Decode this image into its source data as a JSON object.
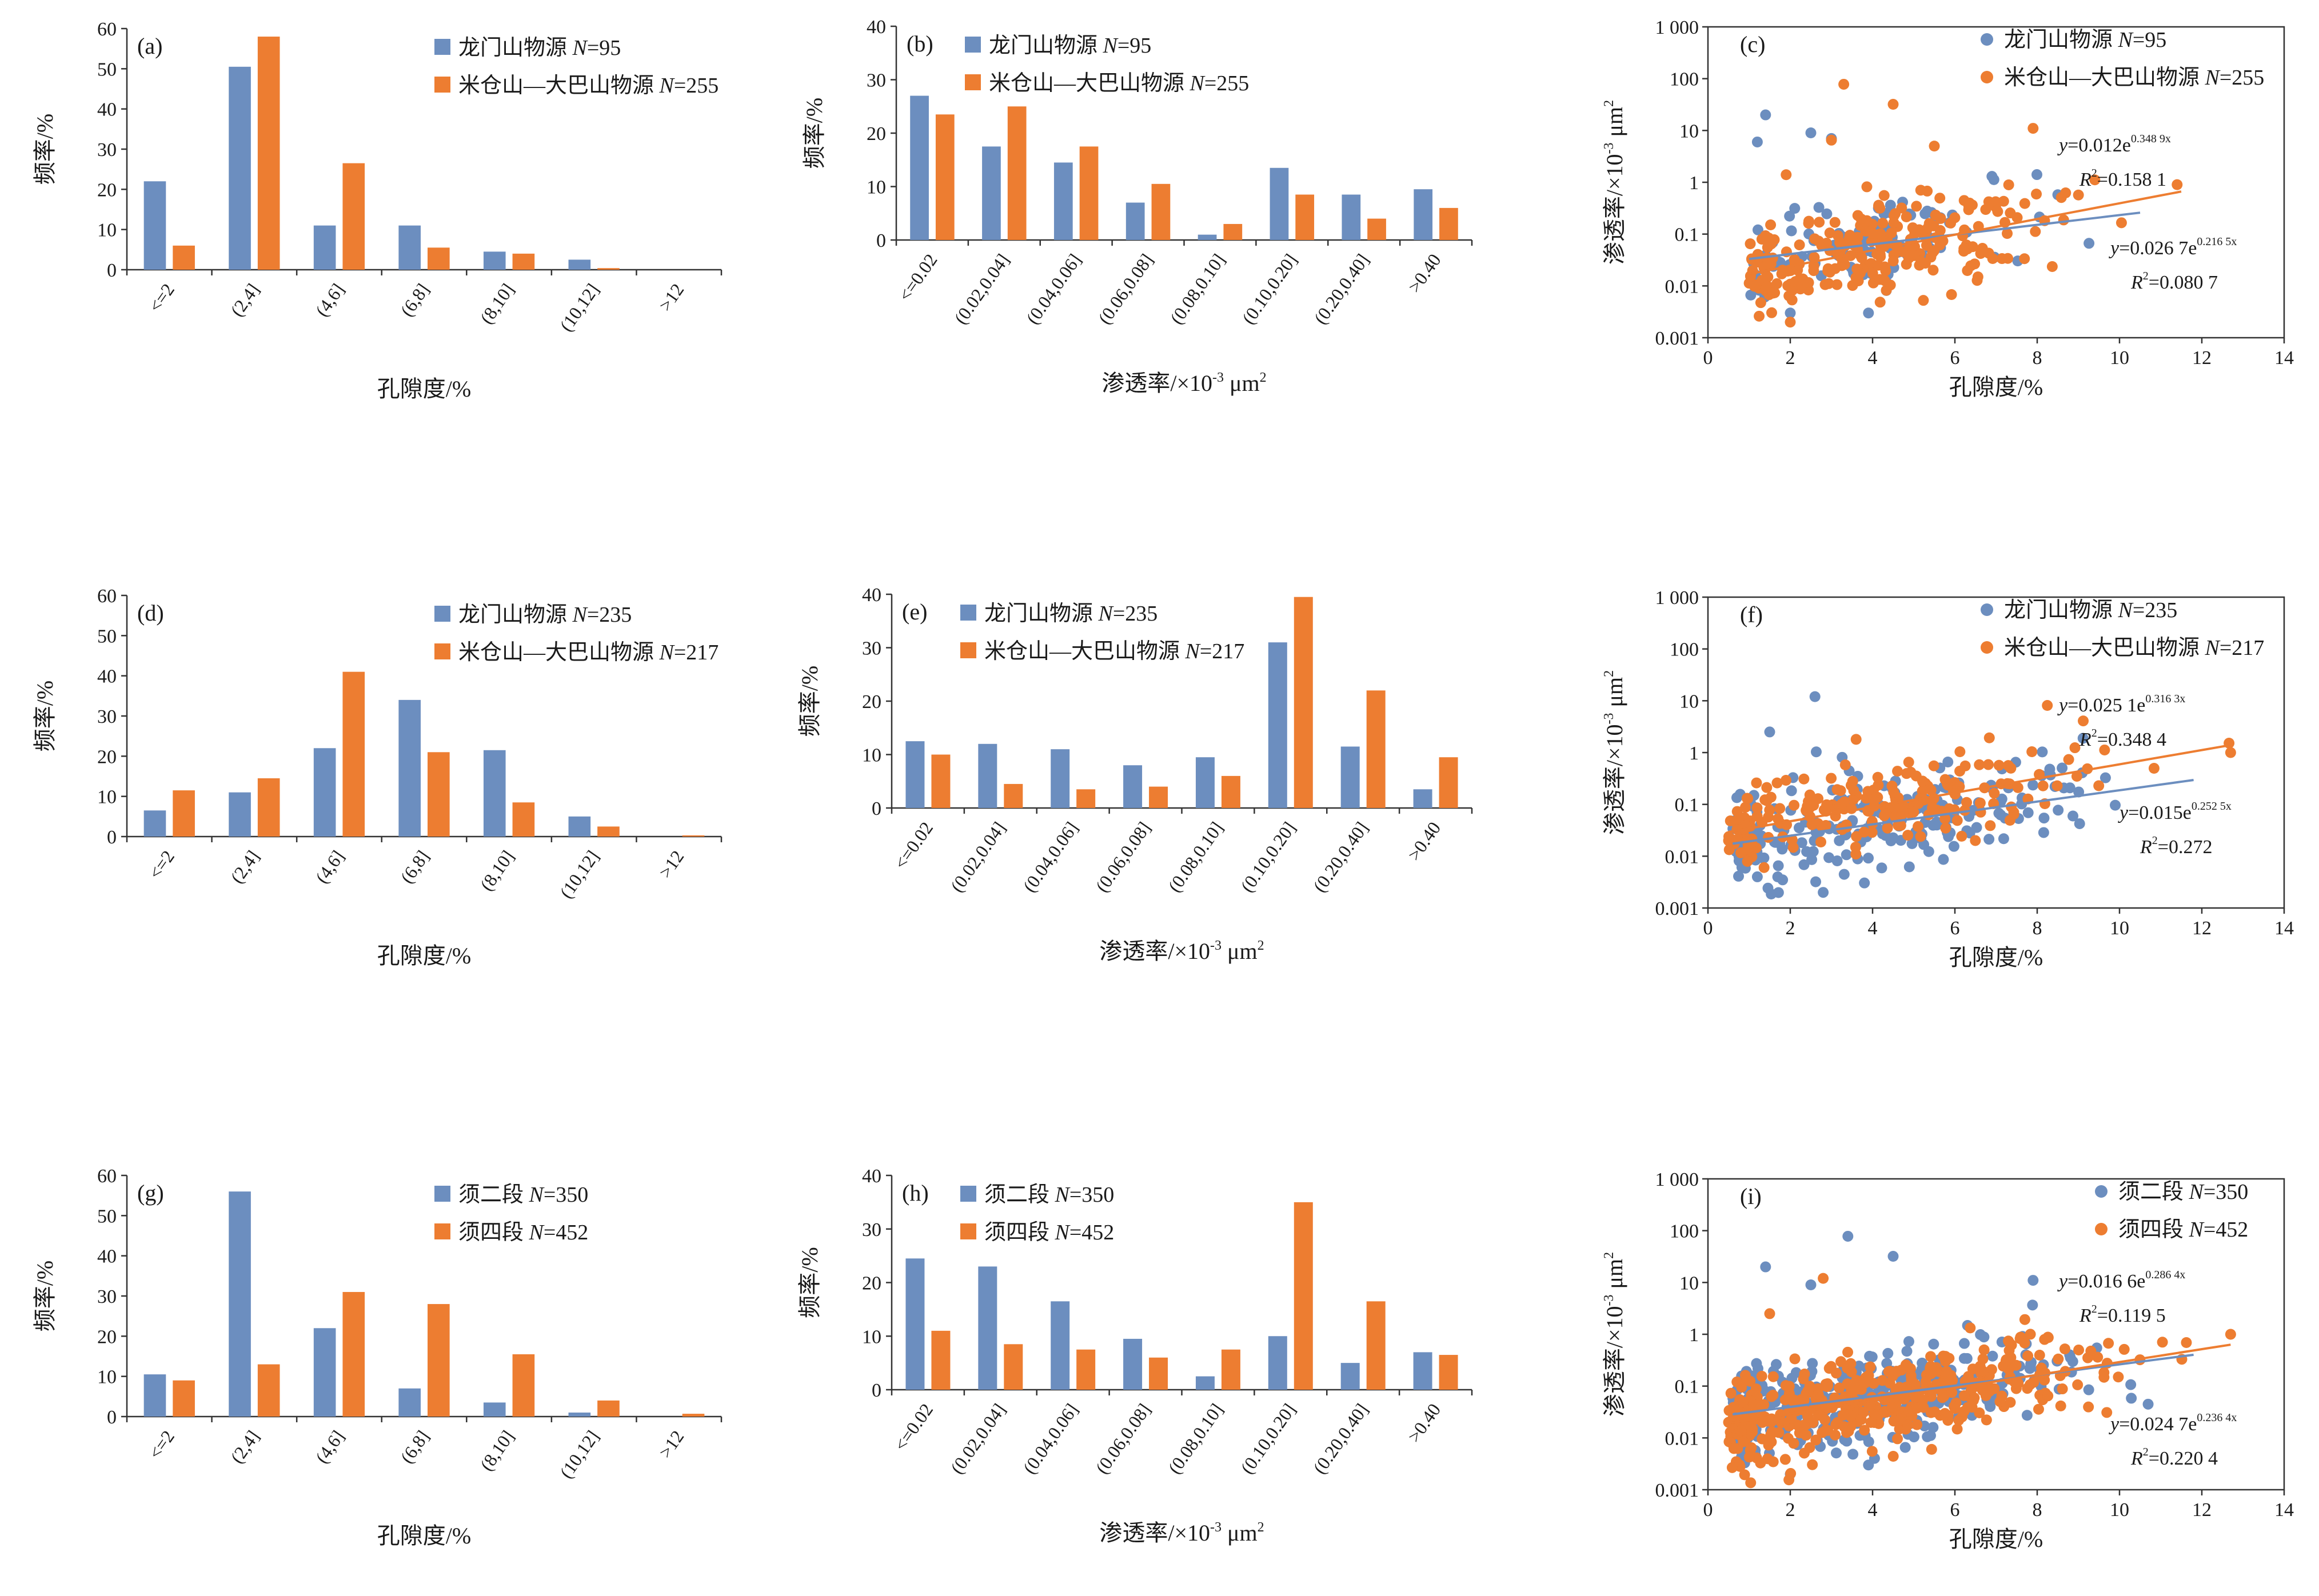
{
  "colors": {
    "series1": "#6c8ebf",
    "series2": "#ed7d31",
    "axis": "#333333"
  },
  "bar_panels": [
    {
      "id": "a",
      "label": "(a)",
      "kind": "porosity",
      "ymax": 60,
      "yticks": [
        0,
        10,
        20,
        30,
        40,
        50,
        60
      ],
      "categories": [
        "<=2",
        "(2,4]",
        "(4,6]",
        "(6,8]",
        "(8,10]",
        "(10,12]",
        ">12"
      ],
      "xtitle": "孔隙度/%",
      "ytitle": "频率/%",
      "legend": [
        {
          "pre": "龙门山物源 ",
          "italic": "N",
          "post": "=95"
        },
        {
          "pre": "米仓山—大巴山物源 ",
          "italic": "N",
          "post": "=255"
        }
      ],
      "series": [
        {
          "values": [
            22,
            50.5,
            11,
            11,
            4.5,
            2.5,
            0
          ]
        },
        {
          "values": [
            6,
            58,
            26.5,
            5.5,
            4,
            0.4,
            0
          ]
        }
      ]
    },
    {
      "id": "b",
      "label": "(b)",
      "kind": "perm",
      "ymax": 40,
      "yticks": [
        0,
        10,
        20,
        30,
        40
      ],
      "categories": [
        "<=0.02",
        "(0.02,0.04]",
        "(0.04,0.06]",
        "(0.06,0.08]",
        "(0.08,0.10]",
        "(0.10,0.20]",
        "(0.20,0.40]",
        ">0.40"
      ],
      "xtitle": "渗透率/×10⁻³ μm²",
      "ytitle": "频率/%",
      "legend": [
        {
          "pre": "龙门山物源 ",
          "italic": "N",
          "post": "=95"
        },
        {
          "pre": "米仓山—大巴山物源 ",
          "italic": "N",
          "post": "=255"
        }
      ],
      "series": [
        {
          "values": [
            27,
            17.5,
            14.5,
            7,
            1,
            13.5,
            8.5,
            9.5
          ]
        },
        {
          "values": [
            23.5,
            25,
            17.5,
            10.5,
            3,
            8.5,
            4,
            6
          ]
        }
      ]
    },
    {
      "id": "d",
      "label": "(d)",
      "kind": "porosity",
      "ymax": 60,
      "yticks": [
        0,
        10,
        20,
        30,
        40,
        50,
        60
      ],
      "categories": [
        "<=2",
        "(2,4]",
        "(4,6]",
        "(6,8]",
        "(8,10]",
        "(10,12]",
        ">12"
      ],
      "xtitle": "孔隙度/%",
      "ytitle": "频率/%",
      "legend": [
        {
          "pre": "龙门山物源 ",
          "italic": "N",
          "post": "=235"
        },
        {
          "pre": "米仓山—大巴山物源 ",
          "italic": "N",
          "post": "=217"
        }
      ],
      "series": [
        {
          "values": [
            6.5,
            11,
            22,
            34,
            21.5,
            5,
            0
          ]
        },
        {
          "values": [
            11.5,
            14.5,
            41,
            21,
            8.5,
            2.5,
            0.3
          ]
        }
      ]
    },
    {
      "id": "e",
      "label": "(e)",
      "kind": "perm",
      "ymax": 40,
      "yticks": [
        0,
        10,
        20,
        30,
        40
      ],
      "categories": [
        "<=0.02",
        "(0.02,0.04]",
        "(0.04,0.06]",
        "(0.06,0.08]",
        "(0.08,0.10]",
        "(0.10,0.20]",
        "(0.20,0.40]",
        ">0.40"
      ],
      "xtitle": "渗透率/×10⁻³ μm²",
      "ytitle": "频率/%",
      "legend": [
        {
          "pre": "龙门山物源 ",
          "italic": "N",
          "post": "=235"
        },
        {
          "pre": "米仓山—大巴山物源 ",
          "italic": "N",
          "post": "=217"
        }
      ],
      "series": [
        {
          "values": [
            12.5,
            12,
            11,
            8,
            9.5,
            31,
            11.5,
            3.5
          ]
        },
        {
          "values": [
            10,
            4.5,
            3.5,
            4,
            6,
            39.5,
            22,
            9.5
          ]
        }
      ]
    },
    {
      "id": "g",
      "label": "(g)",
      "kind": "porosity",
      "ymax": 60,
      "yticks": [
        0,
        10,
        20,
        30,
        40,
        50,
        60
      ],
      "categories": [
        "<=2",
        "(2,4]",
        "(4,6]",
        "(6,8]",
        "(8,10]",
        "(10,12]",
        ">12"
      ],
      "xtitle": "孔隙度/%",
      "ytitle": "频率/%",
      "legend": [
        {
          "pre": "须二段 ",
          "italic": "N",
          "post": "=350"
        },
        {
          "pre": "须四段 ",
          "italic": "N",
          "post": "=452"
        }
      ],
      "series": [
        {
          "values": [
            10.5,
            56,
            22,
            7,
            3.5,
            1,
            0
          ]
        },
        {
          "values": [
            9,
            13,
            31,
            28,
            15.5,
            4,
            0.7
          ]
        }
      ]
    },
    {
      "id": "h",
      "label": "(h)",
      "kind": "perm",
      "ymax": 40,
      "yticks": [
        0,
        10,
        20,
        30,
        40
      ],
      "categories": [
        "<=0.02",
        "(0.02,0.04]",
        "(0.04,0.06]",
        "(0.06,0.08]",
        "(0.08,0.10]",
        "(0.10,0.20]",
        "(0.20,0.40]",
        ">0.40"
      ],
      "xtitle": "渗透率/×10⁻³ μm²",
      "ytitle": "频率/%",
      "legend": [
        {
          "pre": "须二段 ",
          "italic": "N",
          "post": "=350"
        },
        {
          "pre": "须四段 ",
          "italic": "N",
          "post": "=452"
        }
      ],
      "series": [
        {
          "values": [
            24.5,
            23,
            16.5,
            9.5,
            2.5,
            10,
            5,
            7
          ]
        },
        {
          "values": [
            11,
            8.5,
            7.5,
            6,
            7.5,
            35,
            16.5,
            6.5
          ]
        }
      ]
    }
  ],
  "scatter_panels": [
    {
      "id": "c",
      "label": "(c)",
      "xmax": 14,
      "xticks": [
        0,
        2,
        4,
        6,
        8,
        10,
        12,
        14
      ],
      "yticks": [
        "0.001",
        "0.01",
        "0.1",
        "1",
        "10",
        "100",
        "1 000"
      ],
      "xtitle": "孔隙度/%",
      "ytitle": "渗透率/×10⁻³ μm²",
      "legend": [
        {
          "pre": "龙门山物源 ",
          "italic": "N",
          "post": "=95"
        },
        {
          "pre": "米仓山—大巴山物源 ",
          "italic": "N",
          "post": "=255"
        }
      ],
      "series": [
        {
          "a": 0.0267,
          "b": 0.2165,
          "x0": 1.0,
          "x1": 10.5,
          "n": 95,
          "xmin": 1.0,
          "xmax": 10.5,
          "outliers": [
            [
              1.2,
              6
            ],
            [
              1.4,
              20
            ],
            [
              2.5,
              9
            ],
            [
              3.0,
              7
            ],
            [
              2.0,
              0.003
            ],
            [
              3.9,
              0.003
            ],
            [
              6.9,
              1.3
            ]
          ]
        },
        {
          "a": 0.012,
          "b": 0.3489,
          "x0": 1.0,
          "x1": 11.5,
          "n": 255,
          "xmin": 1.0,
          "xmax": 11.5,
          "outliers": [
            [
              3.3,
              78
            ],
            [
              4.5,
              32
            ],
            [
              3.0,
              6.5
            ],
            [
              5.5,
              5
            ],
            [
              7.9,
              11
            ],
            [
              1.9,
              1.4
            ],
            [
              11.4,
              0.9
            ],
            [
              2.0,
              0.002
            ]
          ]
        }
      ],
      "equations": [
        {
          "prefix": "y",
          "coef": "=0.012e",
          "exp": "0.348 9x",
          "r2": "=0.158 1"
        },
        {
          "prefix": "y",
          "coef": "=0.026 7e",
          "exp": "0.216 5x",
          "r2": "=0.080 7"
        }
      ]
    },
    {
      "id": "f",
      "label": "(f)",
      "xmax": 14,
      "xticks": [
        0,
        2,
        4,
        6,
        8,
        10,
        12,
        14
      ],
      "yticks": [
        "0.001",
        "0.01",
        "0.1",
        "1",
        "10",
        "100",
        "1 000"
      ],
      "xtitle": "孔隙度/%",
      "ytitle": "渗透率/×10⁻³ μm²",
      "legend": [
        {
          "pre": "龙门山物源 ",
          "italic": "N",
          "post": "=235"
        },
        {
          "pre": "米仓山—大巴山物源 ",
          "italic": "N",
          "post": "=217"
        }
      ],
      "series": [
        {
          "a": 0.015,
          "b": 0.2525,
          "x0": 0.6,
          "x1": 11.8,
          "n": 235,
          "xmin": 0.6,
          "xmax": 11.8,
          "outliers": [
            [
              2.6,
              12
            ],
            [
              1.5,
              2.5
            ],
            [
              2.8,
              0.002
            ],
            [
              1.2,
              0.004
            ]
          ]
        },
        {
          "a": 0.0251,
          "b": 0.3163,
          "x0": 0.5,
          "x1": 12.7,
          "n": 217,
          "xmin": 0.5,
          "xmax": 12.7,
          "outliers": [
            [
              3.6,
              1.8
            ],
            [
              12.7,
              1.0
            ],
            [
              0.5,
              0.02
            ]
          ]
        }
      ],
      "equations": [
        {
          "prefix": "y",
          "coef": "=0.025 1e",
          "exp": "0.316 3x",
          "r2": "=0.348 4"
        },
        {
          "prefix": "y",
          "coef": "=0.015e",
          "exp": "0.252 5x",
          "r2": "=0.272"
        }
      ]
    },
    {
      "id": "i",
      "label": "(i)",
      "xmax": 14,
      "xticks": [
        0,
        2,
        4,
        6,
        8,
        10,
        12,
        14
      ],
      "yticks": [
        "0.001",
        "0.01",
        "0.1",
        "1",
        "10",
        "100",
        "1 000"
      ],
      "xtitle": "孔隙度/%",
      "ytitle": "渗透率/×10⁻³ μm²",
      "legend": [
        {
          "pre": "须二段 ",
          "italic": "N",
          "post": "=350"
        },
        {
          "pre": "须四段 ",
          "italic": "N",
          "post": "=452"
        }
      ],
      "series": [
        {
          "a": 0.0247,
          "b": 0.2364,
          "x0": 0.6,
          "x1": 11.8,
          "n": 350,
          "xmin": 0.6,
          "xmax": 11.8,
          "outliers": [
            [
              1.4,
              20
            ],
            [
              3.4,
              78
            ],
            [
              2.5,
              9
            ],
            [
              4.5,
              32
            ],
            [
              7.9,
              11
            ],
            [
              2.0,
              0.002
            ],
            [
              3.9,
              0.003
            ]
          ]
        },
        {
          "a": 0.0166,
          "b": 0.2864,
          "x0": 0.5,
          "x1": 12.7,
          "n": 452,
          "xmin": 0.5,
          "xmax": 12.7,
          "outliers": [
            [
              2.8,
              12
            ],
            [
              1.5,
              2.5
            ],
            [
              12.7,
              1.0
            ],
            [
              0.5,
              0.02
            ]
          ]
        }
      ],
      "equations": [
        {
          "prefix": "y",
          "coef": "=0.016 6e",
          "exp": "0.286 4x",
          "r2": "=0.119 5"
        },
        {
          "prefix": "y",
          "coef": "=0.024 7e",
          "exp": "0.236 4x",
          "r2": "=0.220 4"
        }
      ]
    }
  ],
  "chart_data": [
    {
      "type": "bar",
      "id": "a",
      "categories": [
        "<=2",
        "(2,4]",
        "(4,6]",
        "(6,8]",
        "(8,10]",
        "(10,12]",
        ">12"
      ],
      "xlabel": "孔隙度/%",
      "ylabel": "频率/%",
      "ylim": [
        0,
        60
      ],
      "series": [
        {
          "name": "龙门山物源 N=95",
          "values": [
            22,
            50.5,
            11,
            11,
            4.5,
            2.5,
            0
          ]
        },
        {
          "name": "米仓山—大巴山物源 N=255",
          "values": [
            6,
            58,
            26.5,
            5.5,
            4,
            0.4,
            0
          ]
        }
      ]
    },
    {
      "type": "bar",
      "id": "b",
      "categories": [
        "<=0.02",
        "(0.02,0.04]",
        "(0.04,0.06]",
        "(0.06,0.08]",
        "(0.08,0.10]",
        "(0.10,0.20]",
        "(0.20,0.40]",
        ">0.40"
      ],
      "xlabel": "渗透率/×10⁻³ μm²",
      "ylabel": "频率/%",
      "ylim": [
        0,
        40
      ],
      "series": [
        {
          "name": "龙门山物源 N=95",
          "values": [
            27,
            17.5,
            14.5,
            7,
            1,
            13.5,
            8.5,
            9.5
          ]
        },
        {
          "name": "米仓山—大巴山物源 N=255",
          "values": [
            23.5,
            25,
            17.5,
            10.5,
            3,
            8.5,
            4,
            6
          ]
        }
      ]
    },
    {
      "type": "scatter",
      "id": "c",
      "xlabel": "孔隙度/%",
      "ylabel": "渗透率/×10⁻³ μm²",
      "xlim": [
        0,
        14
      ],
      "ylim": [
        0.001,
        1000
      ],
      "yscale": "log",
      "series": [
        {
          "name": "龙门山物源 N=95",
          "fit": "y=0.026 7e^(0.216 5x), R²=0.080 7"
        },
        {
          "name": "米仓山—大巴山物源 N=255",
          "fit": "y=0.012e^(0.348 9x), R²=0.158 1"
        }
      ]
    },
    {
      "type": "bar",
      "id": "d",
      "categories": [
        "<=2",
        "(2,4]",
        "(4,6]",
        "(6,8]",
        "(8,10]",
        "(10,12]",
        ">12"
      ],
      "xlabel": "孔隙度/%",
      "ylabel": "频率/%",
      "ylim": [
        0,
        60
      ],
      "series": [
        {
          "name": "龙门山物源 N=235",
          "values": [
            6.5,
            11,
            22,
            34,
            21.5,
            5,
            0
          ]
        },
        {
          "name": "米仓山—大巴山物源 N=217",
          "values": [
            11.5,
            14.5,
            41,
            21,
            8.5,
            2.5,
            0.3
          ]
        }
      ]
    },
    {
      "type": "bar",
      "id": "e",
      "categories": [
        "<=0.02",
        "(0.02,0.04]",
        "(0.04,0.06]",
        "(0.06,0.08]",
        "(0.08,0.10]",
        "(0.10,0.20]",
        "(0.20,0.40]",
        ">0.40"
      ],
      "xlabel": "渗透率/×10⁻³ μm²",
      "ylabel": "频率/%",
      "ylim": [
        0,
        40
      ],
      "series": [
        {
          "name": "龙门山物源 N=235",
          "values": [
            12.5,
            12,
            11,
            8,
            9.5,
            31,
            11.5,
            3.5
          ]
        },
        {
          "name": "米仓山—大巴山物源 N=217",
          "values": [
            10,
            4.5,
            3.5,
            4,
            6,
            39.5,
            22,
            9.5
          ]
        }
      ]
    },
    {
      "type": "scatter",
      "id": "f",
      "xlabel": "孔隙度/%",
      "ylabel": "渗透率/×10⁻³ μm²",
      "xlim": [
        0,
        14
      ],
      "ylim": [
        0.001,
        1000
      ],
      "yscale": "log",
      "series": [
        {
          "name": "龙门山物源 N=235",
          "fit": "y=0.015e^(0.252 5x), R²=0.272"
        },
        {
          "name": "米仓山—大巴山物源 N=217",
          "fit": "y=0.025 1e^(0.316 3x), R²=0.348 4"
        }
      ]
    },
    {
      "type": "bar",
      "id": "g",
      "categories": [
        "<=2",
        "(2,4]",
        "(4,6]",
        "(6,8]",
        "(8,10]",
        "(10,12]",
        ">12"
      ],
      "xlabel": "孔隙度/%",
      "ylabel": "频率/%",
      "ylim": [
        0,
        60
      ],
      "series": [
        {
          "name": "须二段 N=350",
          "values": [
            10.5,
            56,
            22,
            7,
            3.5,
            1,
            0
          ]
        },
        {
          "name": "须四段 N=452",
          "values": [
            9,
            13,
            31,
            28,
            15.5,
            4,
            0.7
          ]
        }
      ]
    },
    {
      "type": "bar",
      "id": "h",
      "categories": [
        "<=0.02",
        "(0.02,0.04]",
        "(0.04,0.06]",
        "(0.06,0.08]",
        "(0.08,0.10]",
        "(0.10,0.20]",
        "(0.20,0.40]",
        ">0.40"
      ],
      "xlabel": "渗透率/×10⁻³ μm²",
      "ylabel": "频率/%",
      "ylim": [
        0,
        40
      ],
      "series": [
        {
          "name": "须二段 N=350",
          "values": [
            24.5,
            23,
            16.5,
            9.5,
            2.5,
            10,
            5,
            7
          ]
        },
        {
          "name": "须四段 N=452",
          "values": [
            11,
            8.5,
            7.5,
            6,
            7.5,
            35,
            16.5,
            6.5
          ]
        }
      ]
    },
    {
      "type": "scatter",
      "id": "i",
      "xlabel": "孔隙度/%",
      "ylabel": "渗透率/×10⁻³ μm²",
      "xlim": [
        0,
        14
      ],
      "ylim": [
        0.001,
        1000
      ],
      "yscale": "log",
      "series": [
        {
          "name": "须二段 N=350",
          "fit": "y=0.024 7e^(0.236 4x), R²=0.220 4"
        },
        {
          "name": "须四段 N=452",
          "fit": "y=0.016 6e^(0.286 4x), R²=0.119 5"
        }
      ]
    }
  ]
}
